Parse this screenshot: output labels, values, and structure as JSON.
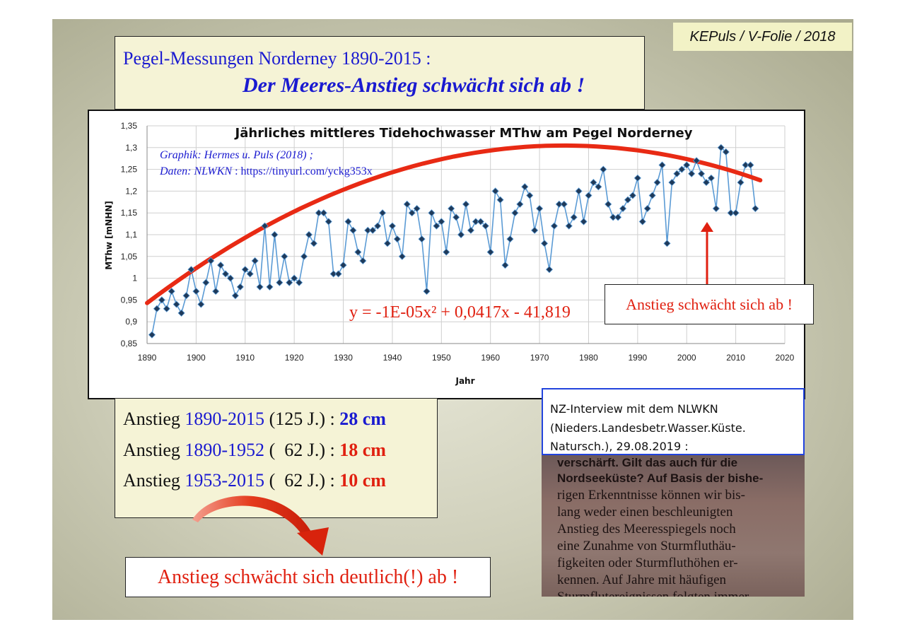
{
  "tag": "KEPuls / V-Folie / 2018",
  "title": {
    "line1": "Pegel-Messungen Norderney 1890-2015 :",
    "line2": "Der Meeres-Anstieg schwächt sich ab !"
  },
  "chart_data": {
    "type": "line",
    "title": "Jährliches mittleres Tidehochwasser MThw am Pegel Norderney",
    "xlabel": "Jahr",
    "ylabel": "MThw [mNHN]",
    "xlim": [
      1890,
      2020
    ],
    "ylim": [
      0.85,
      1.35
    ],
    "x_ticks": [
      "1890",
      "1900",
      "1910",
      "1920",
      "1930",
      "1940",
      "1950",
      "1960",
      "1970",
      "1980",
      "1990",
      "2000",
      "2010",
      "2020"
    ],
    "y_ticks": [
      "0,85",
      "0,9",
      "0,95",
      "1",
      "1,05",
      "1,1",
      "1,15",
      "1,2",
      "1,25",
      "1,3",
      "1,35"
    ],
    "grid": true,
    "colors": {
      "series": "#5b9bd5",
      "marker": "#1f3a5a",
      "trend": "#e82a14"
    },
    "series": [
      {
        "x": [
          1891,
          1892,
          1893,
          1894,
          1895,
          1896,
          1897,
          1898,
          1899,
          1900,
          1901,
          1902,
          1903,
          1904,
          1905,
          1906,
          1907,
          1908,
          1909,
          1910,
          1911,
          1912,
          1913,
          1914,
          1915,
          1916,
          1917,
          1918,
          1919,
          1920,
          1921,
          1922,
          1923,
          1924,
          1925,
          1926,
          1927,
          1928,
          1929,
          1930,
          1931,
          1932,
          1933,
          1934,
          1935,
          1936,
          1937,
          1938,
          1939,
          1940,
          1941,
          1942,
          1943,
          1944,
          1945,
          1946,
          1947,
          1948,
          1949,
          1950,
          1951,
          1952,
          1953,
          1954,
          1955,
          1956,
          1957,
          1958,
          1959,
          1960,
          1961,
          1962,
          1963,
          1964,
          1965,
          1966,
          1967,
          1968,
          1969,
          1970,
          1971,
          1972,
          1973,
          1974,
          1975,
          1976,
          1977,
          1978,
          1979,
          1980,
          1981,
          1982,
          1983,
          1984,
          1985,
          1986,
          1987,
          1988,
          1989,
          1990,
          1991,
          1992,
          1993,
          1994,
          1995,
          1996,
          1997,
          1998,
          1999,
          2000,
          2001,
          2002,
          2003,
          2004,
          2005,
          2006,
          2007,
          2008,
          2009,
          2010,
          2011,
          2012,
          2013,
          2014
        ],
        "y": [
          0.87,
          0.93,
          0.95,
          0.93,
          0.97,
          0.94,
          0.92,
          0.96,
          1.02,
          0.97,
          0.94,
          0.99,
          1.04,
          0.97,
          1.03,
          1.01,
          1.0,
          0.96,
          0.98,
          1.02,
          1.01,
          1.04,
          0.98,
          1.12,
          0.98,
          1.1,
          0.99,
          1.05,
          0.99,
          1.0,
          0.99,
          1.05,
          1.1,
          1.08,
          1.15,
          1.15,
          1.13,
          1.01,
          1.01,
          1.03,
          1.13,
          1.11,
          1.06,
          1.04,
          1.11,
          1.11,
          1.12,
          1.15,
          1.08,
          1.12,
          1.09,
          1.05,
          1.17,
          1.15,
          1.16,
          1.09,
          0.97,
          1.15,
          1.12,
          1.13,
          1.06,
          1.16,
          1.14,
          1.1,
          1.17,
          1.11,
          1.13,
          1.13,
          1.12,
          1.06,
          1.2,
          1.18,
          1.03,
          1.09,
          1.15,
          1.17,
          1.21,
          1.19,
          1.11,
          1.16,
          1.08,
          1.02,
          1.12,
          1.17,
          1.17,
          1.12,
          1.14,
          1.2,
          1.13,
          1.19,
          1.22,
          1.21,
          1.25,
          1.17,
          1.14,
          1.14,
          1.16,
          1.18,
          1.19,
          1.23,
          1.13,
          1.16,
          1.19,
          1.22,
          1.26,
          1.08,
          1.22,
          1.24,
          1.25,
          1.26,
          1.24,
          1.27,
          1.24,
          1.22,
          1.23,
          1.16,
          1.3,
          1.29,
          1.15,
          1.15,
          1.22,
          1.26,
          1.26,
          1.16
        ]
      }
    ],
    "trendline": {
      "label": "y = -1E-05x² + 0,0417x - 41,819",
      "y_start": 0.943,
      "y_end": 1.225,
      "x_start": 1890,
      "x_end": 2015
    }
  },
  "credit": {
    "line1": "Graphik: Hermes u. Puls (2018) ;",
    "line2_label": "Daten: NLWKN",
    "line2_rest": " : https://tinyurl.com/yckg353x"
  },
  "callout": "Anstieg schwächt sich ab !",
  "stats": [
    {
      "label": "Anstieg ",
      "period": "1890-2015",
      "span": " (125 J.) : ",
      "value": "28 cm",
      "color": "blue"
    },
    {
      "label": "Anstieg ",
      "period": "1890-1952",
      "span": " (  62 J.) : ",
      "value": "18 cm",
      "color": "red"
    },
    {
      "label": "Anstieg ",
      "period": "1953-2015",
      "span": " (  62 J.) : ",
      "value": "10 cm",
      "color": "red"
    }
  ],
  "conclusion": "Anstieg schwächt sich deutlich(!) ab !",
  "nz_box": {
    "line1": "NZ-Interview mit dem NLWKN",
    "line2": "(Nieders.Landesbetr.Wasser.Küste.",
    "line3": "Natursch.),  29.08.2019  :"
  },
  "clipping": [
    "verschärft. Gilt das auch für die",
    "Nordseeküste? Auf Basis der bishe-",
    "rigen Erkenntnisse können wir bis-",
    "lang  weder  einen  beschleunigten",
    "Anstieg  des  Meeresspiegels  noch",
    "eine  Zunahme  von  Sturmfluthäu-",
    "figkeiten  oder  Sturmfluthöhen  er-",
    "kennen.  Auf  Jahre  mit  häufigen",
    "Sturmflutereignissen  folgten  immer"
  ]
}
